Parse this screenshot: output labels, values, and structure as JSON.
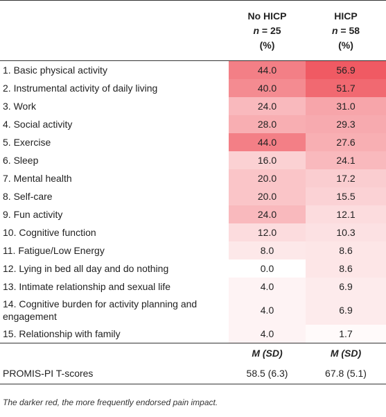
{
  "header": {
    "col1": {
      "group": "No HICP",
      "n_label": "n",
      "n_value": "= 25",
      "unit": "(%)"
    },
    "col2": {
      "group": "HICP",
      "n_label": "n",
      "n_value": "= 58",
      "unit": "(%)"
    }
  },
  "rows": [
    {
      "label": "1. Basic physical activity",
      "no_hicp": "44.0",
      "hicp": "56.9"
    },
    {
      "label": "2. Instrumental activity of daily living",
      "no_hicp": "40.0",
      "hicp": "51.7"
    },
    {
      "label": "3. Work",
      "no_hicp": "24.0",
      "hicp": "31.0"
    },
    {
      "label": "4. Social activity",
      "no_hicp": "28.0",
      "hicp": "29.3"
    },
    {
      "label": "5. Exercise",
      "no_hicp": "44.0",
      "hicp": "27.6"
    },
    {
      "label": "6. Sleep",
      "no_hicp": "16.0",
      "hicp": "24.1"
    },
    {
      "label": "7. Mental health",
      "no_hicp": "20.0",
      "hicp": "17.2"
    },
    {
      "label": "8. Self-care",
      "no_hicp": "20.0",
      "hicp": "15.5"
    },
    {
      "label": "9. Fun activity",
      "no_hicp": "24.0",
      "hicp": "12.1"
    },
    {
      "label": "10. Cognitive function",
      "no_hicp": "12.0",
      "hicp": "10.3"
    },
    {
      "label": "11. Fatigue/Low Energy",
      "no_hicp": "8.0",
      "hicp": "8.6"
    },
    {
      "label": "12. Lying in bed all day and do nothing",
      "no_hicp": "0.0",
      "hicp": "8.6"
    },
    {
      "label": "13. Intimate relationship and sexual life",
      "no_hicp": "4.0",
      "hicp": "6.9"
    },
    {
      "label": "14. Cognitive burden for activity planning and engagement",
      "no_hicp": "4.0",
      "hicp": "6.9"
    },
    {
      "label": "15. Relationship with family",
      "no_hicp": "4.0",
      "hicp": "1.7"
    }
  ],
  "msd_header": {
    "no_hicp": "M (SD)",
    "hicp": "M (SD)"
  },
  "promis": {
    "label": "PROMIS-PI T-scores",
    "no_hicp": "58.5 (6.3)",
    "hicp": "67.8 (5.1)"
  },
  "footnote": "The darker red, the more frequently endorsed pain impact.",
  "colors": {
    "heat_max": "#f05a63",
    "heat_min": "#ffffff",
    "rule": "#333333"
  }
}
